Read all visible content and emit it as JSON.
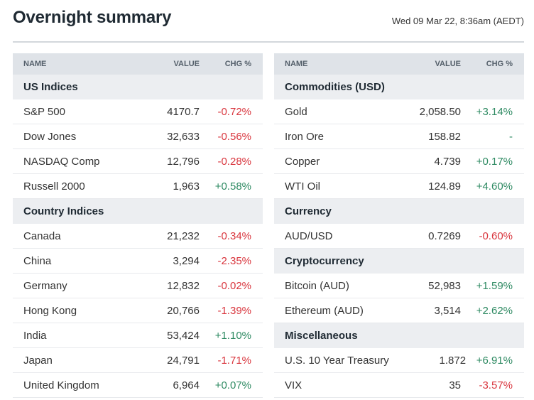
{
  "header": {
    "title": "Overnight summary",
    "timestamp": "Wed 09 Mar 22, 8:36am (AEDT)"
  },
  "columns": {
    "name": "NAME",
    "value": "VALUE",
    "chg": "CHG %"
  },
  "colors": {
    "negative": "#d9363e",
    "positive": "#2e8a62",
    "header_bg": "#dfe3e8",
    "section_bg": "#eceef1"
  },
  "left": {
    "sections": [
      {
        "title": "US Indices",
        "rows": [
          {
            "name": "S&P 500",
            "value": "4170.7",
            "chg": "-0.72%",
            "dir": "neg"
          },
          {
            "name": "Dow Jones",
            "value": "32,633",
            "chg": "-0.56%",
            "dir": "neg"
          },
          {
            "name": "NASDAQ Comp",
            "value": "12,796",
            "chg": "-0.28%",
            "dir": "neg"
          },
          {
            "name": "Russell 2000",
            "value": "1,963",
            "chg": "+0.58%",
            "dir": "pos"
          }
        ]
      },
      {
        "title": "Country Indices",
        "rows": [
          {
            "name": "Canada",
            "value": "21,232",
            "chg": "-0.34%",
            "dir": "neg"
          },
          {
            "name": "China",
            "value": "3,294",
            "chg": "-2.35%",
            "dir": "neg"
          },
          {
            "name": "Germany",
            "value": "12,832",
            "chg": "-0.02%",
            "dir": "neg"
          },
          {
            "name": "Hong Kong",
            "value": "20,766",
            "chg": "-1.39%",
            "dir": "neg"
          },
          {
            "name": "India",
            "value": "53,424",
            "chg": "+1.10%",
            "dir": "pos"
          },
          {
            "name": "Japan",
            "value": "24,791",
            "chg": "-1.71%",
            "dir": "neg"
          },
          {
            "name": "United Kingdom",
            "value": "6,964",
            "chg": "+0.07%",
            "dir": "pos"
          }
        ]
      }
    ]
  },
  "right": {
    "sections": [
      {
        "title": "Commodities (USD)",
        "rows": [
          {
            "name": "Gold",
            "value": "2,058.50",
            "chg": "+3.14%",
            "dir": "pos"
          },
          {
            "name": "Iron Ore",
            "value": "158.82",
            "chg": "-",
            "dir": "flat"
          },
          {
            "name": "Copper",
            "value": "4.739",
            "chg": "+0.17%",
            "dir": "pos"
          },
          {
            "name": "WTI Oil",
            "value": "124.89",
            "chg": "+4.60%",
            "dir": "pos"
          }
        ]
      },
      {
        "title": "Currency",
        "rows": [
          {
            "name": "AUD/USD",
            "value": "0.7269",
            "chg": "-0.60%",
            "dir": "neg"
          }
        ]
      },
      {
        "title": "Cryptocurrency",
        "rows": [
          {
            "name": "Bitcoin (AUD)",
            "value": "52,983",
            "chg": "+1.59%",
            "dir": "pos"
          },
          {
            "name": "Ethereum (AUD)",
            "value": "3,514",
            "chg": "+2.62%",
            "dir": "pos"
          }
        ]
      },
      {
        "title": "Miscellaneous",
        "rows": [
          {
            "name": "U.S. 10 Year Treasury",
            "value": "1.872",
            "chg": "+6.91%",
            "dir": "pos"
          },
          {
            "name": "VIX",
            "value": "35",
            "chg": "-3.57%",
            "dir": "neg"
          }
        ]
      }
    ]
  }
}
